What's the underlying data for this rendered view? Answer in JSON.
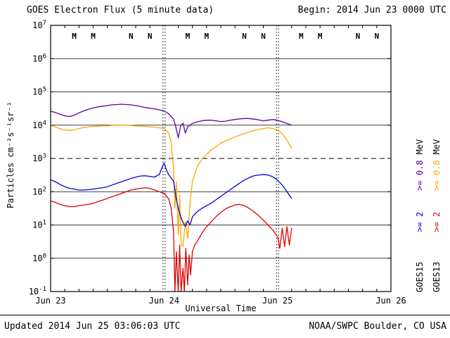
{
  "header": {
    "title": "GOES Electron Flux (5 minute data)",
    "begin": "Begin: 2014 Jun 23 0000 UTC"
  },
  "footer": {
    "updated": "Updated 2014 Jun 25 03:06:03 UTC",
    "credit": "NOAA/SWPC Boulder, CO USA"
  },
  "legend": {
    "columns": [
      {
        "satellite": "GOES15",
        "ge2": ">= 2",
        "ge08": ">= 0.8",
        "mev": "MeV",
        "ge2_color": "#0000dd",
        "ge08_color": "#5a00a0"
      },
      {
        "satellite": "GOES13",
        "ge2": ">= 2",
        "ge08": ">= 0.8",
        "mev": "MeV",
        "ge2_color": "#dd0000",
        "ge08_color": "#ffa500"
      }
    ]
  },
  "chart_data": {
    "type": "line",
    "title": "GOES Electron Flux (5 minute data)",
    "xlabel": "Universal Time",
    "ylabel": "Particles cm⁻²s⁻¹sr⁻¹",
    "xlim_hours": [
      0,
      72
    ],
    "ylim_log": [
      -1,
      7
    ],
    "grid": "on",
    "legend_position": "right",
    "threshold_log": 3,
    "day_lines_hours": [
      24,
      48
    ],
    "x_ticks": [
      {
        "hour": 0,
        "label": "Jun 23"
      },
      {
        "hour": 24,
        "label": "Jun 24"
      },
      {
        "hour": 48,
        "label": "Jun 25"
      },
      {
        "hour": 72,
        "label": "Jun 26"
      }
    ],
    "y_log_exponents": [
      7,
      6,
      5,
      4,
      3,
      2,
      1,
      0,
      -1
    ],
    "markers": [
      {
        "label": "M",
        "hour": 5,
        "color": "#cc0000"
      },
      {
        "label": "M",
        "hour": 9,
        "color": "#0000bb"
      },
      {
        "label": "N",
        "hour": 17,
        "color": "#cc0000"
      },
      {
        "label": "N",
        "hour": 21,
        "color": "#0000bb"
      },
      {
        "label": "M",
        "hour": 29,
        "color": "#cc0000"
      },
      {
        "label": "M",
        "hour": 33,
        "color": "#0000bb"
      },
      {
        "label": "N",
        "hour": 41,
        "color": "#cc0000"
      },
      {
        "label": "N",
        "hour": 45,
        "color": "#0000bb"
      },
      {
        "label": "M",
        "hour": 53,
        "color": "#cc0000"
      },
      {
        "label": "M",
        "hour": 57,
        "color": "#0000bb"
      },
      {
        "label": "N",
        "hour": 65,
        "color": "#cc0000"
      },
      {
        "label": "N",
        "hour": 69,
        "color": "#0000bb"
      }
    ],
    "series": [
      {
        "name": "GOES15 >=0.8 MeV",
        "color": "#5a00a0",
        "points": [
          [
            0,
            4.42
          ],
          [
            1,
            4.38
          ],
          [
            2,
            4.33
          ],
          [
            3,
            4.28
          ],
          [
            4,
            4.26
          ],
          [
            5,
            4.3
          ],
          [
            6,
            4.37
          ],
          [
            7,
            4.43
          ],
          [
            8,
            4.48
          ],
          [
            9,
            4.52
          ],
          [
            10,
            4.55
          ],
          [
            11,
            4.57
          ],
          [
            12,
            4.59
          ],
          [
            13,
            4.61
          ],
          [
            14,
            4.62
          ],
          [
            15,
            4.63
          ],
          [
            16,
            4.62
          ],
          [
            17,
            4.61
          ],
          [
            18,
            4.59
          ],
          [
            19,
            4.56
          ],
          [
            20,
            4.53
          ],
          [
            21,
            4.51
          ],
          [
            22,
            4.49
          ],
          [
            23,
            4.46
          ],
          [
            24,
            4.43
          ],
          [
            25,
            4.34
          ],
          [
            26,
            4.18
          ],
          [
            26.5,
            3.95
          ],
          [
            27,
            3.62
          ],
          [
            27.5,
            3.98
          ],
          [
            28,
            4.06
          ],
          [
            28.5,
            3.76
          ],
          [
            29,
            3.95
          ],
          [
            30,
            4.05
          ],
          [
            31,
            4.1
          ],
          [
            32,
            4.13
          ],
          [
            33,
            4.15
          ],
          [
            34,
            4.15
          ],
          [
            35,
            4.13
          ],
          [
            36,
            4.11
          ],
          [
            37,
            4.12
          ],
          [
            38,
            4.15
          ],
          [
            39,
            4.17
          ],
          [
            40,
            4.19
          ],
          [
            41,
            4.2
          ],
          [
            42,
            4.2
          ],
          [
            43,
            4.18
          ],
          [
            44,
            4.16
          ],
          [
            45,
            4.13
          ],
          [
            46,
            4.15
          ],
          [
            47,
            4.17
          ],
          [
            48,
            4.15
          ],
          [
            49,
            4.1
          ],
          [
            50,
            4.05
          ],
          [
            51,
            4.0
          ]
        ]
      },
      {
        "name": "GOES13 >=0.8 MeV",
        "color": "#ffa500",
        "points": [
          [
            0,
            4.0
          ],
          [
            1,
            3.95
          ],
          [
            2,
            3.89
          ],
          [
            3,
            3.86
          ],
          [
            4,
            3.84
          ],
          [
            5,
            3.86
          ],
          [
            6,
            3.9
          ],
          [
            7,
            3.93
          ],
          [
            8,
            3.95
          ],
          [
            9,
            3.96
          ],
          [
            10,
            3.97
          ],
          [
            11,
            3.98
          ],
          [
            12,
            3.98
          ],
          [
            13,
            3.99
          ],
          [
            14,
            4.0
          ],
          [
            15,
            4.0
          ],
          [
            16,
            4.0
          ],
          [
            17,
            3.99
          ],
          [
            18,
            3.98
          ],
          [
            19,
            3.97
          ],
          [
            20,
            3.96
          ],
          [
            21,
            3.95
          ],
          [
            22,
            3.94
          ],
          [
            23,
            3.92
          ],
          [
            24,
            3.9
          ],
          [
            25,
            3.76
          ],
          [
            25.5,
            3.5
          ],
          [
            26,
            2.7
          ],
          [
            26.3,
            1.5
          ],
          [
            26.6,
            2.3
          ],
          [
            27,
            0.7
          ],
          [
            27.3,
            1.9
          ],
          [
            27.6,
            0.45
          ],
          [
            28,
            0.35
          ],
          [
            28.5,
            1.1
          ],
          [
            29,
            0.6
          ],
          [
            29.5,
            1.7
          ],
          [
            30,
            2.3
          ],
          [
            31,
            2.75
          ],
          [
            32,
            2.98
          ],
          [
            33,
            3.12
          ],
          [
            34,
            3.26
          ],
          [
            35,
            3.36
          ],
          [
            36,
            3.46
          ],
          [
            37,
            3.53
          ],
          [
            38,
            3.59
          ],
          [
            39,
            3.65
          ],
          [
            40,
            3.7
          ],
          [
            41,
            3.75
          ],
          [
            42,
            3.8
          ],
          [
            43,
            3.84
          ],
          [
            44,
            3.87
          ],
          [
            45,
            3.9
          ],
          [
            46,
            3.92
          ],
          [
            47,
            3.9
          ],
          [
            48,
            3.85
          ],
          [
            49,
            3.75
          ],
          [
            50,
            3.55
          ],
          [
            51,
            3.3
          ]
        ]
      },
      {
        "name": "GOES15 >=2 MeV",
        "color": "#0000dd",
        "points": [
          [
            0,
            2.36
          ],
          [
            1,
            2.3
          ],
          [
            2,
            2.22
          ],
          [
            3,
            2.15
          ],
          [
            4,
            2.1
          ],
          [
            5,
            2.08
          ],
          [
            6,
            2.05
          ],
          [
            7,
            2.05
          ],
          [
            8,
            2.06
          ],
          [
            9,
            2.08
          ],
          [
            10,
            2.1
          ],
          [
            11,
            2.12
          ],
          [
            12,
            2.15
          ],
          [
            13,
            2.2
          ],
          [
            14,
            2.25
          ],
          [
            15,
            2.3
          ],
          [
            16,
            2.35
          ],
          [
            17,
            2.4
          ],
          [
            18,
            2.44
          ],
          [
            19,
            2.47
          ],
          [
            20,
            2.48
          ],
          [
            21,
            2.46
          ],
          [
            22,
            2.44
          ],
          [
            23,
            2.52
          ],
          [
            23.5,
            2.7
          ],
          [
            24,
            2.86
          ],
          [
            24.5,
            2.66
          ],
          [
            25,
            2.5
          ],
          [
            26,
            2.32
          ],
          [
            26.5,
            1.85
          ],
          [
            27,
            1.5
          ],
          [
            27.5,
            1.25
          ],
          [
            28,
            1.08
          ],
          [
            28.5,
            0.96
          ],
          [
            29,
            1.12
          ],
          [
            29.5,
            1.0
          ],
          [
            30,
            1.25
          ],
          [
            31,
            1.4
          ],
          [
            32,
            1.5
          ],
          [
            33,
            1.58
          ],
          [
            34,
            1.66
          ],
          [
            35,
            1.76
          ],
          [
            36,
            1.86
          ],
          [
            37,
            1.96
          ],
          [
            38,
            2.06
          ],
          [
            39,
            2.16
          ],
          [
            40,
            2.26
          ],
          [
            41,
            2.35
          ],
          [
            42,
            2.42
          ],
          [
            43,
            2.48
          ],
          [
            44,
            2.5
          ],
          [
            45,
            2.52
          ],
          [
            46,
            2.5
          ],
          [
            47,
            2.45
          ],
          [
            48,
            2.35
          ],
          [
            49,
            2.2
          ],
          [
            50,
            2.0
          ],
          [
            51,
            1.8
          ]
        ]
      },
      {
        "name": "GOES13 >=2 MeV",
        "color": "#dd0000",
        "points": [
          [
            0,
            1.72
          ],
          [
            1,
            1.68
          ],
          [
            2,
            1.62
          ],
          [
            3,
            1.58
          ],
          [
            4,
            1.55
          ],
          [
            5,
            1.55
          ],
          [
            6,
            1.58
          ],
          [
            7,
            1.6
          ],
          [
            8,
            1.62
          ],
          [
            9,
            1.65
          ],
          [
            10,
            1.7
          ],
          [
            11,
            1.75
          ],
          [
            12,
            1.8
          ],
          [
            13,
            1.85
          ],
          [
            14,
            1.9
          ],
          [
            15,
            1.95
          ],
          [
            16,
            2.0
          ],
          [
            17,
            2.05
          ],
          [
            18,
            2.08
          ],
          [
            19,
            2.1
          ],
          [
            20,
            2.12
          ],
          [
            21,
            2.1
          ],
          [
            22,
            2.05
          ],
          [
            23,
            2.0
          ],
          [
            24,
            1.95
          ],
          [
            25,
            1.78
          ],
          [
            25.5,
            1.5
          ],
          [
            26,
            0.8
          ],
          [
            26.3,
            -1.0
          ],
          [
            26.6,
            0.2
          ],
          [
            27,
            -1.0
          ],
          [
            27.3,
            0.4
          ],
          [
            27.6,
            -1.0
          ],
          [
            28,
            -0.3
          ],
          [
            28.3,
            -1.0
          ],
          [
            28.6,
            0.3
          ],
          [
            29,
            -0.8
          ],
          [
            29.3,
            0.1
          ],
          [
            29.6,
            -0.5
          ],
          [
            30,
            0.2
          ],
          [
            30.5,
            0.4
          ],
          [
            31,
            0.5
          ],
          [
            32,
            0.75
          ],
          [
            33,
            0.95
          ],
          [
            34,
            1.1
          ],
          [
            35,
            1.25
          ],
          [
            36,
            1.38
          ],
          [
            37,
            1.48
          ],
          [
            38,
            1.55
          ],
          [
            39,
            1.6
          ],
          [
            40,
            1.62
          ],
          [
            41,
            1.58
          ],
          [
            42,
            1.5
          ],
          [
            43,
            1.4
          ],
          [
            44,
            1.28
          ],
          [
            45,
            1.15
          ],
          [
            46,
            1.0
          ],
          [
            47,
            0.85
          ],
          [
            48,
            0.65
          ],
          [
            48.5,
            0.3
          ],
          [
            49,
            0.9
          ],
          [
            49.5,
            0.35
          ],
          [
            50,
            0.95
          ],
          [
            50.5,
            0.4
          ],
          [
            51,
            0.9
          ]
        ]
      }
    ]
  }
}
